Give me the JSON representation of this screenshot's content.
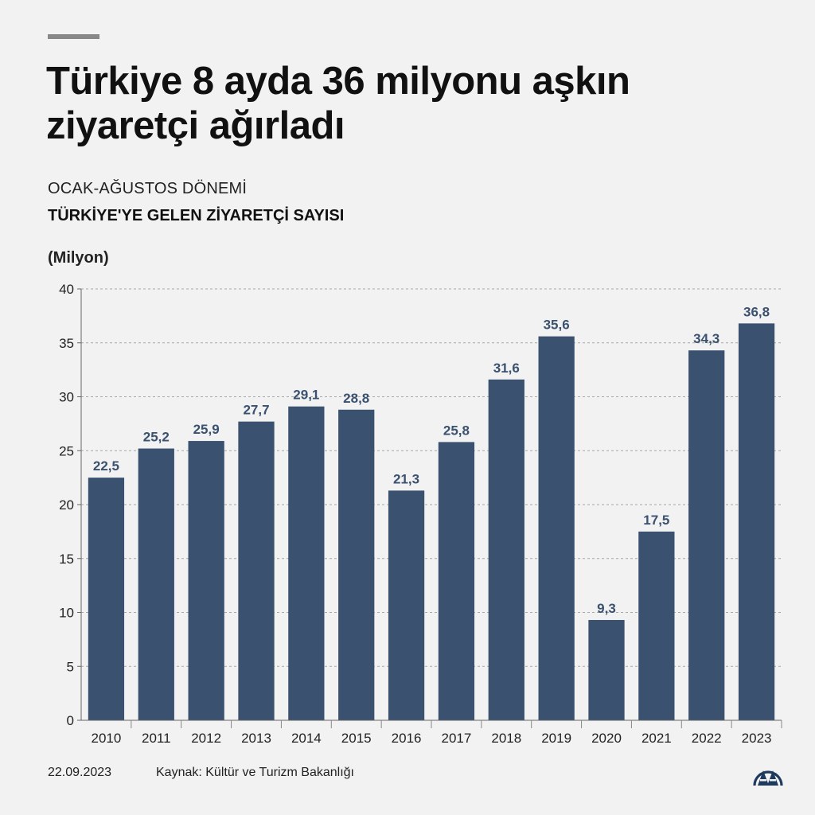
{
  "header": {
    "title": "Türkiye 8 ayda 36 milyonu aşkın ziyaretçi ağırladı",
    "subtitle": "OCAK-AĞUSTOS DÖNEMİ"
  },
  "chart_data": {
    "type": "bar",
    "title": "TÜRKİYE'YE GELEN ZİYARETÇİ SAYISI",
    "ylabel": "(Milyon)",
    "xlabel": "",
    "categories": [
      "2010",
      "2011",
      "2012",
      "2013",
      "2014",
      "2015",
      "2016",
      "2017",
      "2018",
      "2019",
      "2020",
      "2021",
      "2022",
      "2023"
    ],
    "values": [
      22.5,
      25.2,
      25.9,
      27.7,
      29.1,
      28.8,
      21.3,
      25.8,
      31.6,
      35.6,
      9.3,
      17.5,
      34.3,
      36.8
    ],
    "value_labels": [
      "22,5",
      "25,2",
      "25,9",
      "27,7",
      "29,1",
      "28,8",
      "21,3",
      "25,8",
      "31,6",
      "35,6",
      "9,3",
      "17,5",
      "34,3",
      "36,8"
    ],
    "ylim": [
      0,
      40
    ],
    "yticks": [
      0,
      5,
      10,
      15,
      20,
      25,
      30,
      35,
      40
    ],
    "grid": true,
    "bar_color": "#3a5170"
  },
  "footer": {
    "date": "22.09.2023",
    "source": "Kaynak: Kültür ve Turizm Bakanlığı"
  },
  "logo": {
    "icon": "aa-logo-icon",
    "color": "#1f3a5f"
  }
}
